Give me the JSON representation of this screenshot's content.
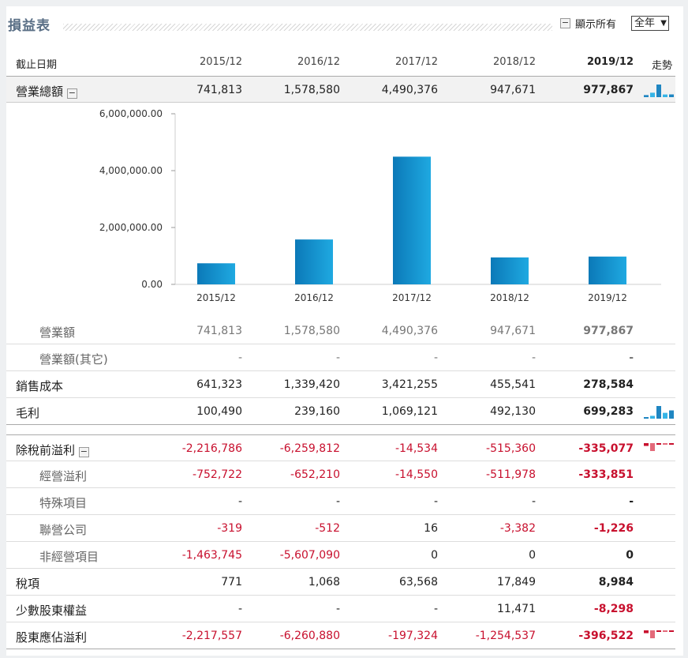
{
  "header": {
    "title": "損益表",
    "show_all_label": "顯示所有",
    "collapse_symbol": "−",
    "period_select": "全年"
  },
  "columns": {
    "label": "截止日期",
    "periods": [
      "2015/12",
      "2016/12",
      "2017/12",
      "2018/12",
      "2019/12"
    ],
    "trend": "走勢"
  },
  "rows": [
    {
      "label": "營業總額",
      "collapsible": true,
      "values": [
        "741,813",
        "1,578,580",
        "4,490,376",
        "947,671",
        "977,867"
      ],
      "trend": "bars-blue"
    },
    {
      "label": "營業額",
      "sub": true,
      "values": [
        "741,813",
        "1,578,580",
        "4,490,376",
        "947,671",
        "977,867"
      ]
    },
    {
      "label": "營業額(其它)",
      "sub": true,
      "values": [
        "-",
        "-",
        "-",
        "-",
        "-"
      ]
    },
    {
      "label": "銷售成本",
      "values": [
        "641,323",
        "1,339,420",
        "3,421,255",
        "455,541",
        "278,584"
      ]
    },
    {
      "label": "毛利",
      "values": [
        "100,490",
        "239,160",
        "1,069,121",
        "492,130",
        "699,283"
      ],
      "trend": "bars-blue"
    },
    {
      "label": "除稅前溢利",
      "collapsible": true,
      "values": [
        "-2,216,786",
        "-6,259,812",
        "-14,534",
        "-515,360",
        "-335,077"
      ],
      "trend": "bars-red"
    },
    {
      "label": "經營溢利",
      "sub": true,
      "values": [
        "-752,722",
        "-652,210",
        "-14,550",
        "-511,978",
        "-333,851"
      ]
    },
    {
      "label": "特殊項目",
      "sub": true,
      "values": [
        "-",
        "-",
        "-",
        "-",
        "-"
      ]
    },
    {
      "label": "聯營公司",
      "sub": true,
      "values": [
        "-319",
        "-512",
        "16",
        "-3,382",
        "-1,226"
      ]
    },
    {
      "label": "非經營項目",
      "sub": true,
      "values": [
        "-1,463,745",
        "-5,607,090",
        "0",
        "0",
        "0"
      ]
    },
    {
      "label": "稅項",
      "values": [
        "771",
        "1,068",
        "63,568",
        "17,849",
        "8,984"
      ]
    },
    {
      "label": "少數股東權益",
      "values": [
        "-",
        "-",
        "-",
        "11,471",
        "-8,298"
      ]
    },
    {
      "label": "股東應佔溢利",
      "values": [
        "-2,217,557",
        "-6,260,880",
        "-197,324",
        "-1,254,537",
        "-396,522"
      ],
      "trend": "bars-red"
    }
  ],
  "chart_data": {
    "type": "bar",
    "categories": [
      "2015/12",
      "2016/12",
      "2017/12",
      "2018/12",
      "2019/12"
    ],
    "values": [
      741813,
      1578580,
      4490376,
      947671,
      977867
    ],
    "ylim": [
      0,
      6000000
    ],
    "yticks": [
      0,
      2000000,
      4000000,
      6000000
    ],
    "ytick_labels": [
      "0.00",
      "2,000,000.00",
      "4,000,000.00",
      "6,000,000.00"
    ],
    "grid": false,
    "colors": {
      "bar_top": "#1fa9e1",
      "bar_bottom": "#0b79b8",
      "axis": "#cfcfcf"
    }
  },
  "colors": {
    "negative": "#c8102e",
    "title": "#5a6f86",
    "sparkline_blue": "#1f86c2",
    "sparkline_red": "#c8102e"
  }
}
